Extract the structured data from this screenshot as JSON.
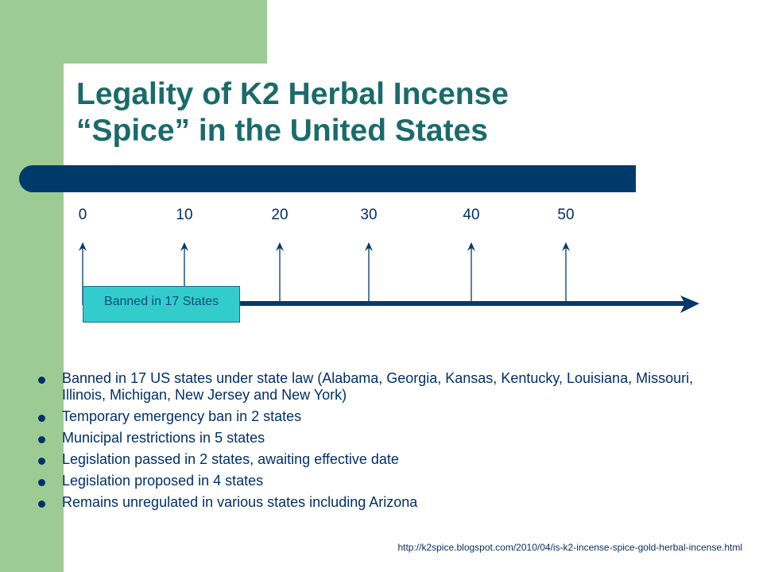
{
  "slide": {
    "title_lines": [
      "Legality of K2 Herbal Incense",
      "“Spice” in the United States"
    ],
    "source_url": "http://k2spice.blogspot.com/2010/04/is-k2-incense-spice-gold-herbal-incense.html"
  },
  "timeline": {
    "ticks": [
      "0",
      "10",
      "20",
      "30",
      "40",
      "50"
    ],
    "banned_label": "Banned in 17 States"
  },
  "bullets": [
    "Banned in 17 US states under state law (Alabama, Georgia, Kansas, Kentucky, Louisiana, Missouri, Illinois, Michigan, New Jersey and New York)",
    "Temporary emergency ban in 2 states",
    "Municipal restrictions in 5 states",
    "Legislation passed in 2 states, awaiting effective date",
    "Legislation proposed in 4 states",
    "Remains unregulated in various states including Arizona"
  ],
  "colors": {
    "title": "#1a6b6b",
    "bar": "#003a6b",
    "box": "#33cccc",
    "text": "#00306a",
    "green": "#9ccc94"
  }
}
